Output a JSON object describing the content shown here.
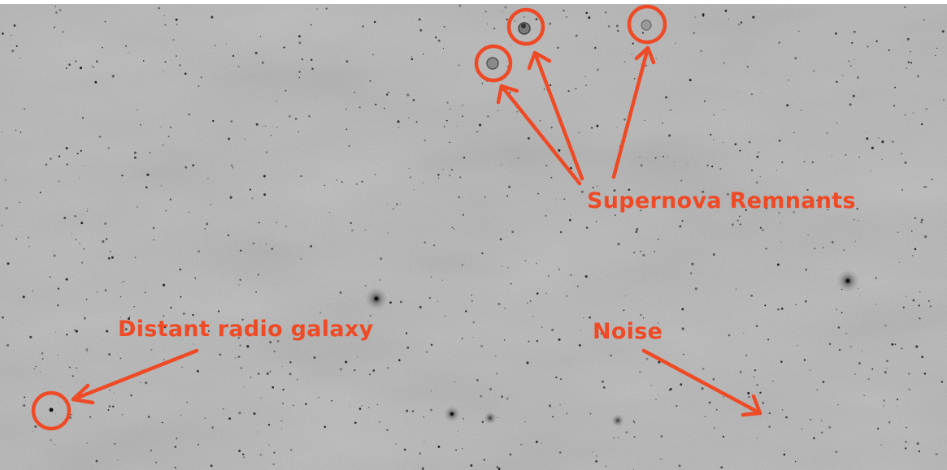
{
  "image": {
    "background_color": "#b3b3b3",
    "annotation_color": "#ee4a26",
    "source_color": "#1a1a1a"
  },
  "annotations": {
    "supernova_label": "Supernova Remnants",
    "radio_galaxy_label": "Distant radio galaxy",
    "noise_label": "Noise"
  }
}
